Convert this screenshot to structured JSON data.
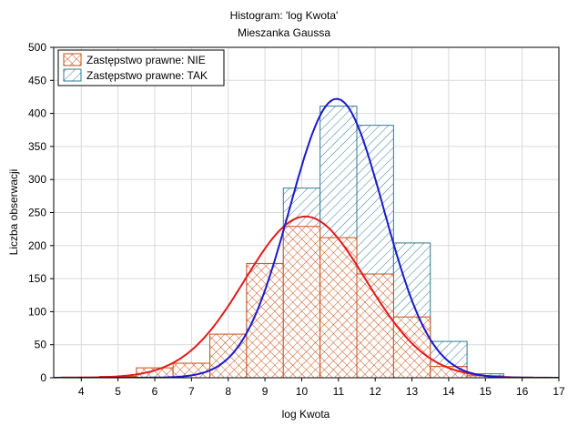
{
  "chart_data": {
    "type": "bar",
    "title": "Histogram: 'log Kwota'",
    "subtitle": "Mieszanka Gaussa",
    "xlabel": "log Kwota",
    "ylabel": "Liczba obserwacji",
    "xlim": [
      3.25,
      17
    ],
    "ylim": [
      0,
      500
    ],
    "x_ticks": [
      4,
      5,
      6,
      7,
      8,
      9,
      10,
      11,
      12,
      13,
      14,
      15,
      16,
      17
    ],
    "y_ticks": [
      0,
      50,
      100,
      150,
      200,
      250,
      300,
      350,
      400,
      450,
      500
    ],
    "grid": true,
    "legend_position": "top-left",
    "bin_edges": [
      3.5,
      4.5,
      5.5,
      6.5,
      7.5,
      8.5,
      9.5,
      10.5,
      11.5,
      12.5,
      13.5,
      14.5,
      15.5
    ],
    "series": [
      {
        "name": "Zastępstwo prawne: TAK",
        "color": "#2f7a96",
        "hatch": "single-diagonal",
        "values": [
          0,
          1,
          3,
          4,
          54,
          158,
          287,
          411,
          382,
          204,
          55,
          6
        ]
      },
      {
        "name": "Zastępstwo prawne: NIE",
        "color": "#d2691e",
        "hatch": "cross-hatch",
        "values": [
          1,
          2,
          15,
          22,
          66,
          173,
          229,
          212,
          157,
          92,
          17,
          3
        ]
      }
    ],
    "curves": [
      {
        "series": "Zastępstwo prawne: NIE",
        "color": "#e31a1c",
        "peak_x": 10.1,
        "peak_y": 244,
        "sd": 1.65
      },
      {
        "series": "Zastępstwo prawne: TAK",
        "color": "#1a1acc",
        "peak_x": 10.95,
        "peak_y": 422,
        "sd": 1.28
      }
    ]
  }
}
